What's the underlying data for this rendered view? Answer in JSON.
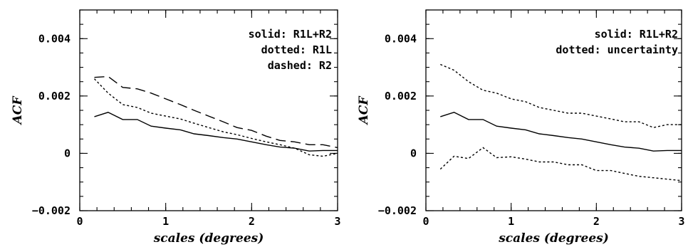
{
  "chart_data": [
    {
      "type": "line",
      "xlabel": "scales (degrees)",
      "ylabel": "ACF",
      "xlim": [
        0,
        3
      ],
      "ylim": [
        -0.002,
        0.005
      ],
      "x_ticks": [
        0,
        1,
        2,
        3
      ],
      "x_tick_labels": [
        "0",
        "1",
        "2",
        "3"
      ],
      "y_ticks": [
        -0.002,
        0,
        0.002,
        0.004
      ],
      "y_tick_labels": [
        "−0.002",
        "0",
        "0.002",
        "0.004"
      ],
      "legend_lines": [
        "solid: R1L+R2",
        "dotted: R1L",
        "dashed: R2"
      ],
      "legend_placement": "top-right",
      "series": [
        {
          "style": "solid",
          "x": [
            0.17,
            0.33,
            0.5,
            0.67,
            0.83,
            1.0,
            1.17,
            1.33,
            1.5,
            1.67,
            1.83,
            2.0,
            2.17,
            2.33,
            2.5,
            2.67,
            2.83,
            3.0
          ],
          "values": [
            0.00128,
            0.00143,
            0.00118,
            0.00118,
            0.00095,
            0.00088,
            0.00082,
            0.00068,
            0.00062,
            0.00055,
            0.0005,
            0.0004,
            0.0003,
            0.00022,
            0.00018,
            8e-05,
            0.0001,
            0.0001
          ]
        },
        {
          "style": "dotted",
          "x": [
            0.17,
            0.33,
            0.5,
            0.67,
            0.83,
            1.0,
            1.17,
            1.33,
            1.5,
            1.67,
            1.83,
            2.0,
            2.17,
            2.33,
            2.5,
            2.67,
            2.83,
            3.0
          ],
          "values": [
            0.0026,
            0.0021,
            0.0017,
            0.0016,
            0.0014,
            0.0013,
            0.0012,
            0.00105,
            0.0009,
            0.00075,
            0.00065,
            0.00052,
            0.0004,
            0.0003,
            0.00018,
            -5e-05,
            -0.0001,
            0.0
          ]
        },
        {
          "style": "dashed",
          "x": [
            0.17,
            0.33,
            0.5,
            0.67,
            0.83,
            1.0,
            1.17,
            1.33,
            1.5,
            1.67,
            1.83,
            2.0,
            2.17,
            2.33,
            2.5,
            2.67,
            2.83,
            3.0
          ],
          "values": [
            0.00265,
            0.00268,
            0.0023,
            0.00225,
            0.0021,
            0.0019,
            0.0017,
            0.0015,
            0.0013,
            0.0011,
            0.0009,
            0.0008,
            0.0006,
            0.00045,
            0.0004,
            0.0003,
            0.0003,
            0.0002
          ]
        }
      ]
    },
    {
      "type": "line",
      "xlabel": "scales (degrees)",
      "ylabel": "ACF",
      "xlim": [
        0,
        3
      ],
      "ylim": [
        -0.002,
        0.005
      ],
      "x_ticks": [
        0,
        1,
        2,
        3
      ],
      "x_tick_labels": [
        "0",
        "1",
        "2",
        "3"
      ],
      "y_ticks": [
        -0.002,
        0,
        0.002,
        0.004
      ],
      "y_tick_labels": [
        "−0.002",
        "0",
        "0.002",
        "0.004"
      ],
      "legend_lines": [
        "solid: R1L+R2",
        "dotted: uncertainty"
      ],
      "legend_placement": "top-right",
      "series": [
        {
          "style": "solid",
          "x": [
            0.17,
            0.33,
            0.5,
            0.67,
            0.83,
            1.0,
            1.17,
            1.33,
            1.5,
            1.67,
            1.83,
            2.0,
            2.17,
            2.33,
            2.5,
            2.67,
            2.83,
            3.0
          ],
          "values": [
            0.00128,
            0.00143,
            0.00118,
            0.00118,
            0.00095,
            0.00088,
            0.00082,
            0.00068,
            0.00062,
            0.00055,
            0.0005,
            0.0004,
            0.0003,
            0.00022,
            0.00018,
            8e-05,
            0.0001,
            0.0001
          ]
        },
        {
          "style": "dotted",
          "x": [
            0.17,
            0.33,
            0.5,
            0.67,
            0.83,
            1.0,
            1.17,
            1.33,
            1.5,
            1.67,
            1.83,
            2.0,
            2.17,
            2.33,
            2.5,
            2.67,
            2.83,
            3.0
          ],
          "values": [
            0.0031,
            0.0029,
            0.0025,
            0.0022,
            0.0021,
            0.0019,
            0.0018,
            0.0016,
            0.0015,
            0.0014,
            0.0014,
            0.0013,
            0.0012,
            0.0011,
            0.0011,
            0.0009,
            0.001,
            0.001
          ]
        },
        {
          "style": "dotted",
          "x": [
            0.17,
            0.33,
            0.5,
            0.67,
            0.83,
            1.0,
            1.17,
            1.33,
            1.5,
            1.67,
            1.83,
            2.0,
            2.17,
            2.33,
            2.5,
            2.67,
            2.83,
            3.0
          ],
          "values": [
            -0.00055,
            -0.0001,
            -0.00018,
            0.0002,
            -0.00015,
            -0.00012,
            -0.0002,
            -0.0003,
            -0.0003,
            -0.0004,
            -0.0004,
            -0.0006,
            -0.0006,
            -0.0007,
            -0.0008,
            -0.00085,
            -0.0009,
            -0.00095
          ]
        }
      ]
    }
  ]
}
